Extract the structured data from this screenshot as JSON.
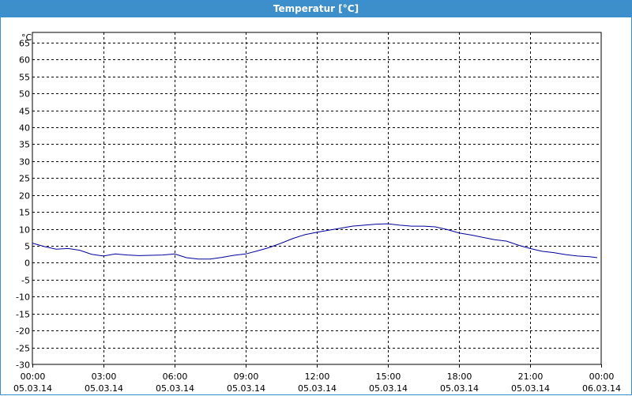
{
  "window": {
    "title": "Temperatur [°C]"
  },
  "colors": {
    "titlebar": "#3d8fcb",
    "series": "#0000a0",
    "grid": "#000000"
  },
  "chart_data": {
    "type": "line",
    "title": "Temperatur [°C]",
    "ylabel": "°C",
    "xlabel": "",
    "ylim": [
      -30,
      68
    ],
    "y_ticks": [
      65,
      60,
      55,
      50,
      45,
      40,
      35,
      30,
      25,
      20,
      15,
      10,
      5,
      0,
      -5,
      -10,
      -15,
      -20,
      -25,
      -30
    ],
    "x_ticks": [
      {
        "time": "00:00",
        "date": "05.03.14"
      },
      {
        "time": "03:00",
        "date": "05.03.14"
      },
      {
        "time": "06:00",
        "date": "05.03.14"
      },
      {
        "time": "09:00",
        "date": "05.03.14"
      },
      {
        "time": "12:00",
        "date": "05.03.14"
      },
      {
        "time": "15:00",
        "date": "05.03.14"
      },
      {
        "time": "18:00",
        "date": "05.03.14"
      },
      {
        "time": "21:00",
        "date": "05.03.14"
      },
      {
        "time": "00:00",
        "date": "06.03.14"
      }
    ],
    "grid": true,
    "grid_style": "dashed",
    "series": [
      {
        "x": [
          "00:00",
          "00:30",
          "01:00",
          "01:30",
          "02:00",
          "02:30",
          "03:00",
          "03:30",
          "04:00",
          "04:30",
          "05:00",
          "05:30",
          "06:00",
          "06:30",
          "07:00",
          "07:30",
          "08:00",
          "08:30",
          "09:00",
          "09:30",
          "10:00",
          "10:30",
          "11:00",
          "11:30",
          "12:00",
          "12:30",
          "13:00",
          "13:30",
          "14:00",
          "14:30",
          "15:00",
          "15:30",
          "16:00",
          "16:30",
          "17:00",
          "17:30",
          "18:00",
          "18:30",
          "19:00",
          "19:30",
          "20:00",
          "20:30",
          "21:00",
          "21:30",
          "22:00",
          "22:30",
          "23:00",
          "23:30",
          "23:50"
        ],
        "values": [
          5.8,
          4.8,
          4.0,
          4.2,
          3.7,
          2.5,
          2.0,
          2.6,
          2.3,
          2.1,
          2.2,
          2.3,
          2.6,
          1.5,
          1.1,
          1.1,
          1.6,
          2.2,
          2.6,
          3.5,
          4.5,
          5.8,
          7.2,
          8.3,
          9.0,
          9.6,
          10.2,
          10.8,
          11.1,
          11.4,
          11.5,
          11.1,
          10.8,
          10.8,
          10.6,
          9.8,
          8.8,
          8.2,
          7.5,
          6.8,
          6.4,
          5.2,
          4.2,
          3.4,
          3.0,
          2.4,
          2.0,
          1.8,
          1.5
        ]
      }
    ]
  }
}
